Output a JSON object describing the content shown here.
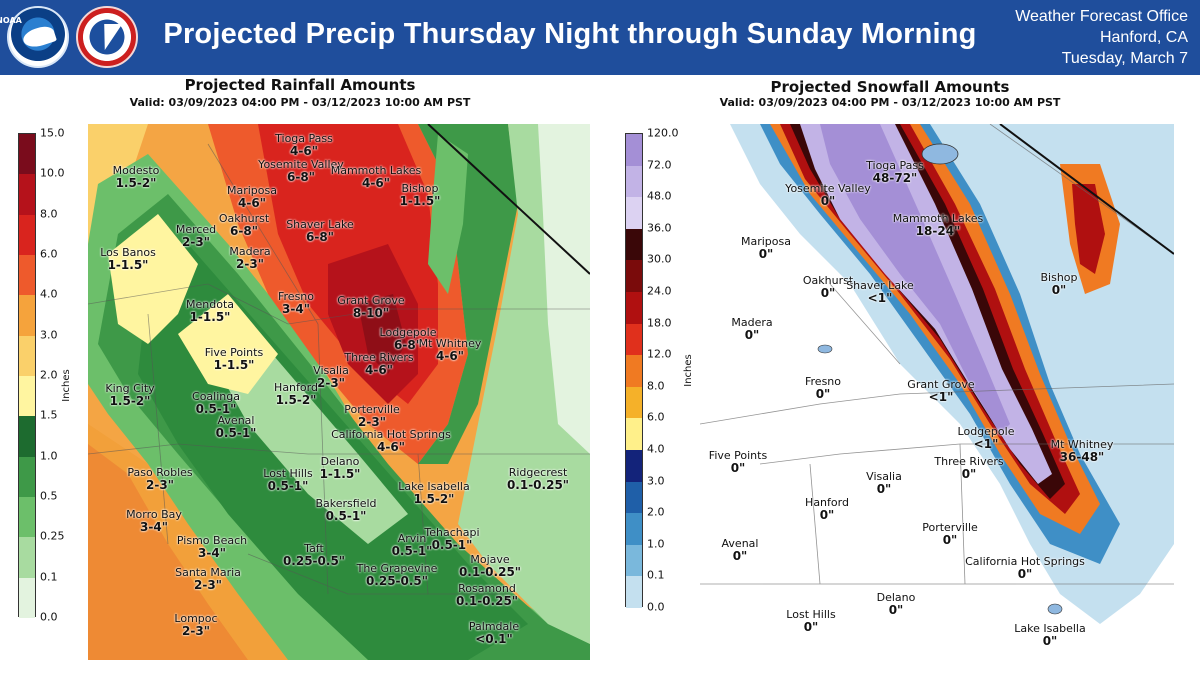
{
  "header": {
    "title": "Projected Precip Thursday Night through Sunday Morning",
    "office_line1": "Weather Forecast Office",
    "office_line2": "Hanford, CA",
    "office_line3": "Tuesday, March 7",
    "noaa_logo_text": "NOAA",
    "nws_logo_text": "NATIONAL WEATHER SERVICE",
    "colors": {
      "banner": "#1f4e9c",
      "text": "#ffffff"
    }
  },
  "rain": {
    "title": "Projected Rainfall Amounts",
    "valid": "Valid: 03/09/2023 04:00 PM - 03/12/2023 10:00 AM PST",
    "unit": "Inches",
    "colorbar_ticks": [
      "15.0",
      "10.0",
      "8.0",
      "6.0",
      "4.0",
      "3.0",
      "2.0",
      "1.5",
      "1.0",
      "0.5",
      "0.25",
      "0.1",
      "0.0"
    ],
    "colorbar_colors": [
      "#7a0c1c",
      "#b5121b",
      "#d9241e",
      "#ee5a2c",
      "#f5a33c",
      "#fad06a",
      "#fff5a0",
      "#1d6b2f",
      "#3e9948",
      "#6cbf6a",
      "#a8dba0",
      "#e3f3df"
    ],
    "labels": [
      {
        "name": "Tioga Pass",
        "value": "4-6\""
      },
      {
        "name": "Yosemite Valley",
        "value": "6-8\""
      },
      {
        "name": "Mammoth Lakes",
        "value": "4-6\""
      },
      {
        "name": "Modesto",
        "value": "1.5-2\""
      },
      {
        "name": "Mariposa",
        "value": "4-6\""
      },
      {
        "name": "Bishop",
        "value": "1-1.5\""
      },
      {
        "name": "Oakhurst",
        "value": "6-8\""
      },
      {
        "name": "Shaver Lake",
        "value": "6-8\""
      },
      {
        "name": "Merced",
        "value": "2-3\""
      },
      {
        "name": "Madera",
        "value": "2-3\""
      },
      {
        "name": "Los Banos",
        "value": "1-1.5\""
      },
      {
        "name": "Fresno",
        "value": "3-4\""
      },
      {
        "name": "Grant Grove",
        "value": "8-10\""
      },
      {
        "name": "Mendota",
        "value": "1-1.5\""
      },
      {
        "name": "Lodgepole",
        "value": "6-8\""
      },
      {
        "name": "Mt Whitney",
        "value": "4-6\""
      },
      {
        "name": "Five Points",
        "value": "1-1.5\""
      },
      {
        "name": "Three Rivers",
        "value": "4-6\""
      },
      {
        "name": "Visalia",
        "value": "2-3\""
      },
      {
        "name": "King City",
        "value": "1.5-2\""
      },
      {
        "name": "Hanford",
        "value": "1.5-2\""
      },
      {
        "name": "Coalinga",
        "value": "0.5-1\""
      },
      {
        "name": "Avenal",
        "value": "0.5-1\""
      },
      {
        "name": "Porterville",
        "value": "2-3\""
      },
      {
        "name": "California Hot Springs",
        "value": "4-6\""
      },
      {
        "name": "Paso Robles",
        "value": "2-3\""
      },
      {
        "name": "Lost Hills",
        "value": "0.5-1\""
      },
      {
        "name": "Delano",
        "value": "1-1.5\""
      },
      {
        "name": "Ridgecrest",
        "value": "0.1-0.25\""
      },
      {
        "name": "Lake Isabella",
        "value": "1.5-2\""
      },
      {
        "name": "Bakersfield",
        "value": "0.5-1\""
      },
      {
        "name": "Morro Bay",
        "value": "3-4\""
      },
      {
        "name": "Pismo Beach",
        "value": "3-4\""
      },
      {
        "name": "Tehachapi",
        "value": "0.5-1\""
      },
      {
        "name": "Arvin",
        "value": "0.5-1\""
      },
      {
        "name": "Taft",
        "value": "0.25-0.5\""
      },
      {
        "name": "Santa Maria",
        "value": "2-3\""
      },
      {
        "name": "The Grapevine",
        "value": "0.25-0.5\""
      },
      {
        "name": "Mojave",
        "value": "0.1-0.25\""
      },
      {
        "name": "Rosamond",
        "value": "0.1-0.25\""
      },
      {
        "name": "Lompoc",
        "value": "2-3\""
      },
      {
        "name": "Palmdale",
        "value": "<0.1\""
      }
    ]
  },
  "snow": {
    "title": "Projected Snowfall Amounts",
    "valid": "Valid: 03/09/2023 04:00 PM - 03/12/2023 10:00 AM PST",
    "unit": "Inches",
    "colorbar_ticks": [
      "120.0",
      "72.0",
      "48.0",
      "36.0",
      "30.0",
      "24.0",
      "18.0",
      "12.0",
      "8.0",
      "6.0",
      "4.0",
      "3.0",
      "2.0",
      "1.0",
      "0.1",
      "0.0"
    ],
    "colorbar_colors": [
      "#a48fd6",
      "#c2b3e6",
      "#dcd2f2",
      "#3a0708",
      "#7a0b0b",
      "#b01010",
      "#e0301c",
      "#f07a22",
      "#f5b129",
      "#fff08a",
      "#13237a",
      "#1f5fa8",
      "#3f8fc6",
      "#7ab8dc",
      "#c4e0ef"
    ],
    "labels": [
      {
        "name": "Tioga Pass",
        "value": "48-72\""
      },
      {
        "name": "Yosemite Valley",
        "value": "0\""
      },
      {
        "name": "Mammoth Lakes",
        "value": "18-24\""
      },
      {
        "name": "Mariposa",
        "value": "0\""
      },
      {
        "name": "Bishop",
        "value": "0\""
      },
      {
        "name": "Oakhurst",
        "value": "0\""
      },
      {
        "name": "Shaver Lake",
        "value": "<1\""
      },
      {
        "name": "Madera",
        "value": "0\""
      },
      {
        "name": "Fresno",
        "value": "0\""
      },
      {
        "name": "Grant Grove",
        "value": "<1\""
      },
      {
        "name": "Lodgepole",
        "value": "<1\""
      },
      {
        "name": "Mt Whitney",
        "value": "36-48\""
      },
      {
        "name": "Five Points",
        "value": "0\""
      },
      {
        "name": "Three Rivers",
        "value": "0\""
      },
      {
        "name": "Visalia",
        "value": "0\""
      },
      {
        "name": "Hanford",
        "value": "0\""
      },
      {
        "name": "Avenal",
        "value": "0\""
      },
      {
        "name": "Porterville",
        "value": "0\""
      },
      {
        "name": "California Hot Springs",
        "value": "0\""
      },
      {
        "name": "Delano",
        "value": "0\""
      },
      {
        "name": "Lost Hills",
        "value": "0\""
      },
      {
        "name": "Lake Isabella",
        "value": "0\""
      }
    ]
  }
}
